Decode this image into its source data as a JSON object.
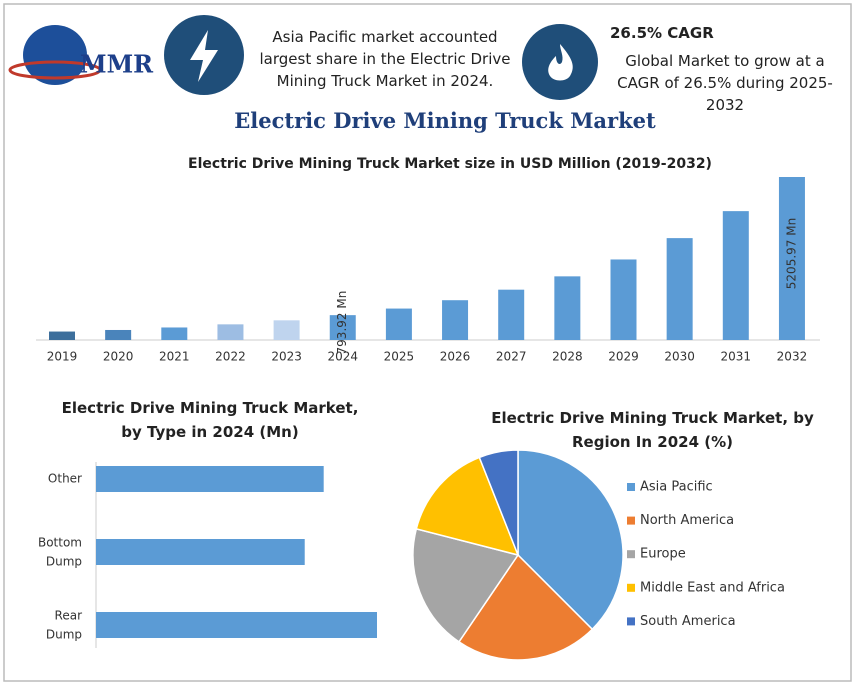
{
  "header": {
    "logo": "MMR",
    "note_1": "Asia Pacific market accounted largest share in the Electric Drive Mining Truck Market in 2024.",
    "cagr_title": "26.5% CAGR",
    "note_2": "Global Market to grow at a CAGR of 26.5% during 2025-2032",
    "title": "Electric Drive Mining Truck Market"
  },
  "chart_data": [
    {
      "type": "bar",
      "title": "Electric Drive Mining Truck Market size in USD Million (2019-2032)",
      "categories": [
        "2019",
        "2020",
        "2021",
        "2022",
        "2023",
        "2024",
        "2025",
        "2026",
        "2027",
        "2028",
        "2029",
        "2030",
        "2031",
        "2032"
      ],
      "values": [
        270,
        320,
        400,
        500,
        628,
        793.92,
        1004,
        1271,
        1607,
        2033,
        2572,
        3254,
        4116,
        5205.97
      ],
      "value_labels": [
        null,
        null,
        null,
        null,
        null,
        "793.92 Mn",
        null,
        null,
        null,
        null,
        null,
        null,
        null,
        "5205.97 Mn"
      ],
      "colors": [
        "#3d6f9c",
        "#4a84bb",
        "#5b9bd5",
        "#9dbde3",
        "#bfd4ee",
        "#5b9bd5",
        "#5b9bd5",
        "#5b9bd5",
        "#5b9bd5",
        "#5b9bd5",
        "#5b9bd5",
        "#5b9bd5",
        "#5b9bd5",
        "#5b9bd5"
      ]
    },
    {
      "type": "hbar",
      "title": "Electric Drive Mining Truck Market, by Type in 2024 (Mn)",
      "categories": [
        "Other",
        "Bottom Dump",
        "Rear Dump"
      ],
      "values": [
        252,
        231,
        311
      ],
      "color": "#5b9bd5"
    },
    {
      "type": "pie",
      "title": "Electric Drive Mining Truck Market, by Region In 2024 (%)",
      "categories": [
        "Asia Pacific",
        "North America",
        "Europe",
        "Middle East and Africa",
        "South America"
      ],
      "values": [
        37.5,
        22,
        19.5,
        15,
        6
      ],
      "colors": [
        "#5b9bd5",
        "#ed7d31",
        "#a5a5a5",
        "#ffc000",
        "#4472c4"
      ]
    }
  ]
}
